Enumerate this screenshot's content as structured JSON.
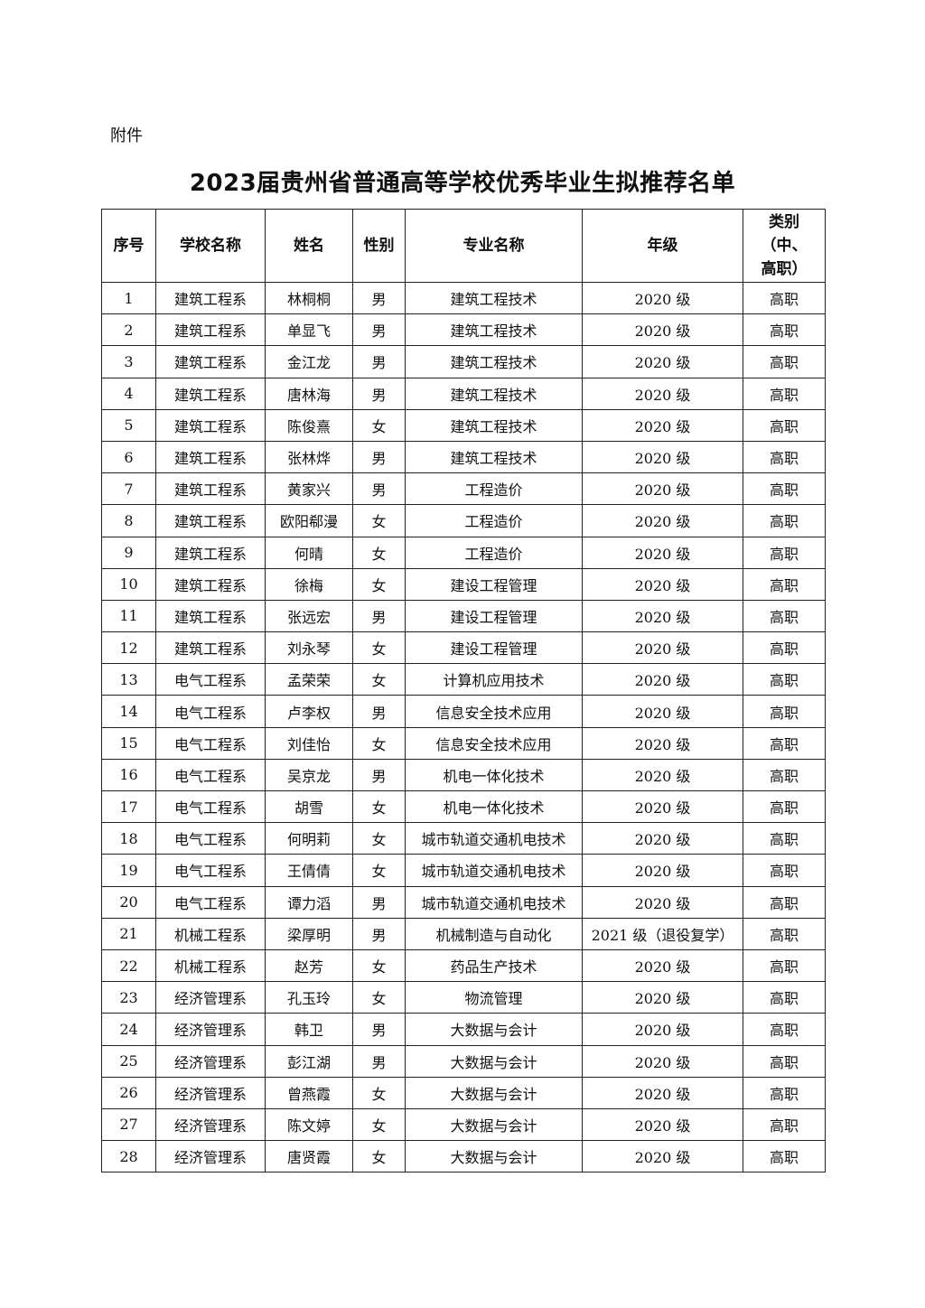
{
  "attachment_label": "附件",
  "title": "2023届贵州省普通高等学校优秀毕业生拟推荐名单",
  "table": {
    "headers": [
      "序号",
      "学校名称",
      "姓名",
      "性别",
      "专业名称",
      "年级",
      "类别（中、高职）"
    ],
    "rows": [
      [
        "1",
        "建筑工程系",
        "林桐桐",
        "男",
        "建筑工程技术",
        "2020 级",
        "高职"
      ],
      [
        "2",
        "建筑工程系",
        "单显飞",
        "男",
        "建筑工程技术",
        "2020 级",
        "高职"
      ],
      [
        "3",
        "建筑工程系",
        "金江龙",
        "男",
        "建筑工程技术",
        "2020 级",
        "高职"
      ],
      [
        "4",
        "建筑工程系",
        "唐林海",
        "男",
        "建筑工程技术",
        "2020 级",
        "高职"
      ],
      [
        "5",
        "建筑工程系",
        "陈俊熹",
        "女",
        "建筑工程技术",
        "2020 级",
        "高职"
      ],
      [
        "6",
        "建筑工程系",
        "张林烨",
        "男",
        "建筑工程技术",
        "2020 级",
        "高职"
      ],
      [
        "7",
        "建筑工程系",
        "黄家兴",
        "男",
        "工程造价",
        "2020 级",
        "高职"
      ],
      [
        "8",
        "建筑工程系",
        "欧阳郗漫",
        "女",
        "工程造价",
        "2020 级",
        "高职"
      ],
      [
        "9",
        "建筑工程系",
        "何晴",
        "女",
        "工程造价",
        "2020 级",
        "高职"
      ],
      [
        "10",
        "建筑工程系",
        "徐梅",
        "女",
        "建设工程管理",
        "2020 级",
        "高职"
      ],
      [
        "11",
        "建筑工程系",
        "张远宏",
        "男",
        "建设工程管理",
        "2020 级",
        "高职"
      ],
      [
        "12",
        "建筑工程系",
        "刘永琴",
        "女",
        "建设工程管理",
        "2020 级",
        "高职"
      ],
      [
        "13",
        "电气工程系",
        "孟荣荣",
        "女",
        "计算机应用技术",
        "2020 级",
        "高职"
      ],
      [
        "14",
        "电气工程系",
        "卢李权",
        "男",
        "信息安全技术应用",
        "2020 级",
        "高职"
      ],
      [
        "15",
        "电气工程系",
        "刘佳怡",
        "女",
        "信息安全技术应用",
        "2020 级",
        "高职"
      ],
      [
        "16",
        "电气工程系",
        "吴京龙",
        "男",
        "机电一体化技术",
        "2020 级",
        "高职"
      ],
      [
        "17",
        "电气工程系",
        "胡雪",
        "女",
        "机电一体化技术",
        "2020 级",
        "高职"
      ],
      [
        "18",
        "电气工程系",
        "何明莉",
        "女",
        "城市轨道交通机电技术",
        "2020 级",
        "高职"
      ],
      [
        "19",
        "电气工程系",
        "王倩倩",
        "女",
        "城市轨道交通机电技术",
        "2020 级",
        "高职"
      ],
      [
        "20",
        "电气工程系",
        "谭力滔",
        "男",
        "城市轨道交通机电技术",
        "2020 级",
        "高职"
      ],
      [
        "21",
        "机械工程系",
        "梁厚明",
        "男",
        "机械制造与自动化",
        "2021 级（退役复学）",
        "高职"
      ],
      [
        "22",
        "机械工程系",
        "赵芳",
        "女",
        "药品生产技术",
        "2020 级",
        "高职"
      ],
      [
        "23",
        "经济管理系",
        "孔玉玲",
        "女",
        "物流管理",
        "2020 级",
        "高职"
      ],
      [
        "24",
        "经济管理系",
        "韩卫",
        "男",
        "大数据与会计",
        "2020 级",
        "高职"
      ],
      [
        "25",
        "经济管理系",
        "彭江湖",
        "男",
        "大数据与会计",
        "2020 级",
        "高职"
      ],
      [
        "26",
        "经济管理系",
        "曾燕霞",
        "女",
        "大数据与会计",
        "2020 级",
        "高职"
      ],
      [
        "27",
        "经济管理系",
        "陈文婷",
        "女",
        "大数据与会计",
        "2020 级",
        "高职"
      ],
      [
        "28",
        "经济管理系",
        "唐贤霞",
        "女",
        "大数据与会计",
        "2020 级",
        "高职"
      ]
    ]
  }
}
